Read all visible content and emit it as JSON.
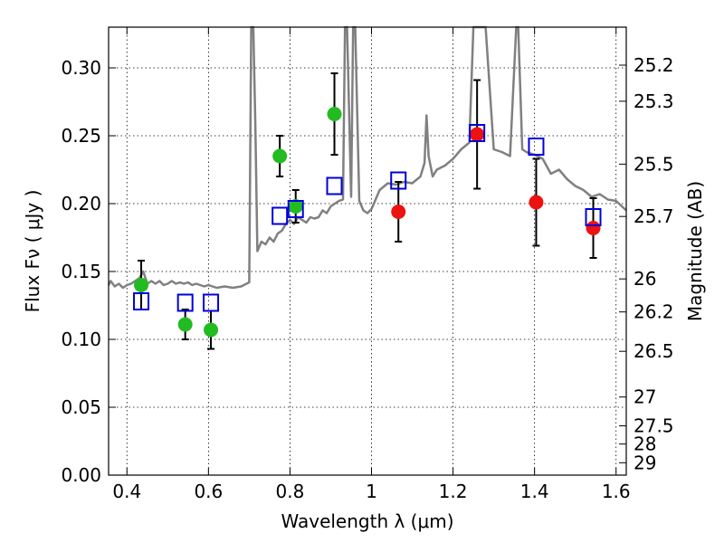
{
  "chart_data": {
    "type": "scatter",
    "xlabel": "Wavelength  λ (μm)",
    "ylabel": "Flux  Fν  ( μJy )",
    "ylabel_right": "Magnitude (AB)",
    "xlim": [
      0.355,
      1.625
    ],
    "ylim": [
      0.0,
      0.33
    ],
    "x_ticks": [
      0.4,
      0.6,
      0.8,
      1.0,
      1.2,
      1.4,
      1.6
    ],
    "x_tick_labels": [
      "0.4",
      "0.6",
      "0.8",
      "1",
      "1.2",
      "1.4",
      "1.6"
    ],
    "y_ticks": [
      0.0,
      0.05,
      0.1,
      0.15,
      0.2,
      0.25,
      0.3
    ],
    "y_tick_labels": [
      "0.00",
      "0.05",
      "0.10",
      "0.15",
      "0.20",
      "0.25",
      "0.30"
    ],
    "right_ticks": [
      {
        "label": "25.2",
        "mag": 25.2
      },
      {
        "label": "25.3",
        "mag": 25.3
      },
      {
        "label": "25.5",
        "mag": 25.5
      },
      {
        "label": "25.7",
        "mag": 25.7
      },
      {
        "label": "26",
        "mag": 26.0
      },
      {
        "label": "26.2",
        "mag": 26.2
      },
      {
        "label": "26.5",
        "mag": 26.5
      },
      {
        "label": "27",
        "mag": 27.0
      },
      {
        "label": "27.5",
        "mag": 27.5
      },
      {
        "label": "28",
        "mag": 28.0
      },
      {
        "label": "29",
        "mag": 29.0
      }
    ],
    "grid": true,
    "colors": {
      "green_points": "#22bb22",
      "red_points": "#ee1111",
      "model_squares": "#0000dd",
      "spectrum": "#808080",
      "error_bars": "#000000"
    },
    "series": [
      {
        "marker": "filled-circle-green",
        "x": [
          0.435,
          0.543,
          0.606,
          0.775,
          0.814,
          0.909
        ],
        "y": [
          0.14,
          0.111,
          0.107,
          0.235,
          0.198,
          0.266
        ],
        "yerr": [
          0.018,
          0.011,
          0.014,
          0.015,
          0.012,
          0.03
        ]
      },
      {
        "marker": "filled-circle-red",
        "x": [
          1.066,
          1.259,
          1.404,
          1.544
        ],
        "y": [
          0.194,
          0.251,
          0.201,
          0.182
        ],
        "yerr": [
          0.022,
          0.04,
          0.032,
          0.022
        ]
      },
      {
        "marker": "open-square-blue",
        "x": [
          0.435,
          0.543,
          0.606,
          0.775,
          0.814,
          0.909,
          1.066,
          1.259,
          1.404,
          1.544
        ],
        "y": [
          0.128,
          0.127,
          0.127,
          0.191,
          0.196,
          0.213,
          0.217,
          0.252,
          0.242,
          0.19
        ]
      },
      {
        "marker": "line-gray-spectrum",
        "x": [
          0.355,
          0.36,
          0.37,
          0.38,
          0.39,
          0.4,
          0.41,
          0.42,
          0.43,
          0.44,
          0.45,
          0.46,
          0.47,
          0.48,
          0.49,
          0.5,
          0.51,
          0.52,
          0.53,
          0.54,
          0.55,
          0.56,
          0.57,
          0.58,
          0.59,
          0.6,
          0.62,
          0.64,
          0.66,
          0.68,
          0.7,
          0.705,
          0.71,
          0.715,
          0.72,
          0.73,
          0.74,
          0.75,
          0.76,
          0.77,
          0.78,
          0.79,
          0.8,
          0.81,
          0.82,
          0.83,
          0.84,
          0.85,
          0.86,
          0.87,
          0.88,
          0.89,
          0.9,
          0.91,
          0.92,
          0.93,
          0.935,
          0.94,
          0.95,
          0.955,
          0.96,
          0.97,
          0.98,
          0.99,
          1.0,
          1.02,
          1.04,
          1.06,
          1.08,
          1.1,
          1.12,
          1.13,
          1.135,
          1.14,
          1.15,
          1.16,
          1.18,
          1.2,
          1.22,
          1.24,
          1.25,
          1.26,
          1.27,
          1.28,
          1.3,
          1.32,
          1.34,
          1.355,
          1.36,
          1.37,
          1.38,
          1.4,
          1.42,
          1.44,
          1.46,
          1.48,
          1.5,
          1.52,
          1.54,
          1.56,
          1.58,
          1.6,
          1.625
        ],
        "y": [
          0.14,
          0.143,
          0.139,
          0.141,
          0.138,
          0.14,
          0.141,
          0.143,
          0.145,
          0.15,
          0.141,
          0.143,
          0.141,
          0.143,
          0.14,
          0.141,
          0.143,
          0.141,
          0.142,
          0.141,
          0.142,
          0.14,
          0.141,
          0.14,
          0.139,
          0.14,
          0.138,
          0.139,
          0.138,
          0.139,
          0.142,
          0.33,
          0.33,
          0.26,
          0.165,
          0.172,
          0.17,
          0.175,
          0.172,
          0.178,
          0.18,
          0.185,
          0.188,
          0.185,
          0.19,
          0.188,
          0.186,
          0.19,
          0.189,
          0.19,
          0.195,
          0.193,
          0.198,
          0.2,
          0.202,
          0.203,
          0.33,
          0.33,
          0.205,
          0.33,
          0.33,
          0.202,
          0.195,
          0.193,
          0.196,
          0.21,
          0.215,
          0.214,
          0.216,
          0.215,
          0.22,
          0.23,
          0.265,
          0.235,
          0.22,
          0.225,
          0.228,
          0.233,
          0.24,
          0.245,
          0.33,
          0.33,
          0.33,
          0.33,
          0.24,
          0.238,
          0.235,
          0.33,
          0.33,
          0.24,
          0.238,
          0.236,
          0.233,
          0.222,
          0.225,
          0.218,
          0.213,
          0.21,
          0.205,
          0.207,
          0.203,
          0.202,
          0.195
        ]
      }
    ]
  }
}
